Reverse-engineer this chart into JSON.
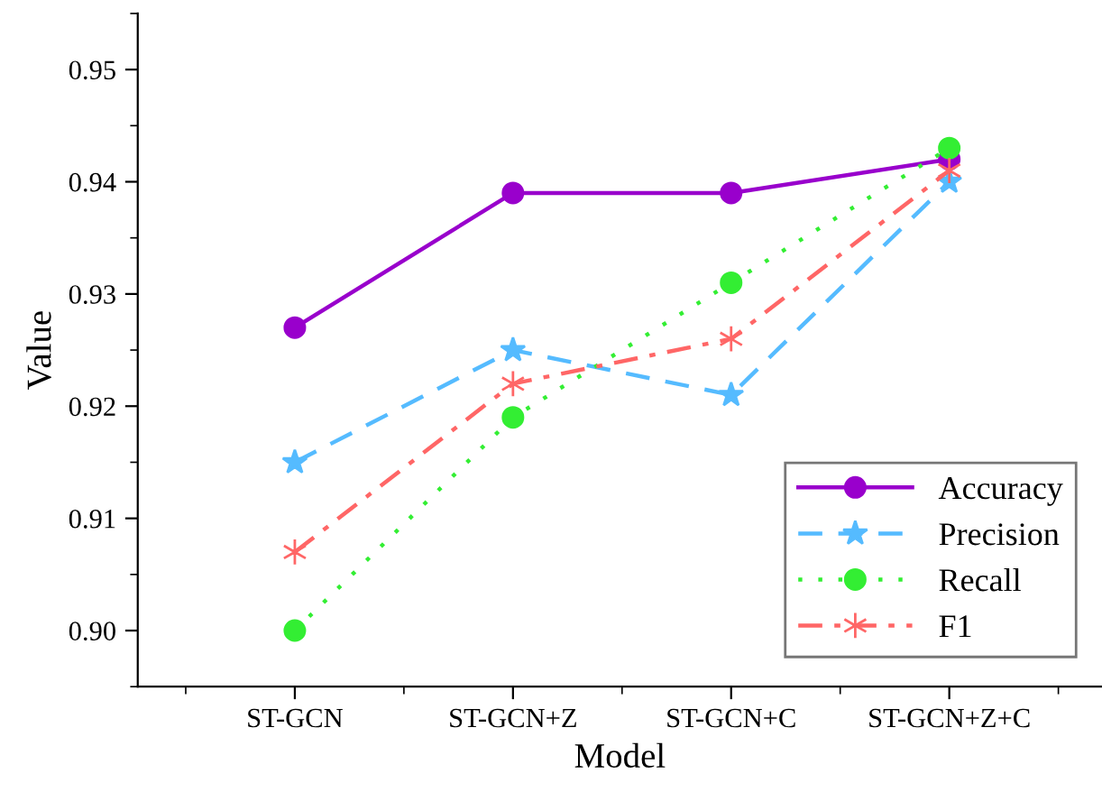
{
  "chart_data": {
    "type": "line",
    "xlabel": "Model",
    "ylabel": "Value",
    "categories": [
      "ST-GCN",
      "ST-GCN+Z",
      "ST-GCN+C",
      "ST-GCN+Z+C"
    ],
    "series": [
      {
        "name": "Accuracy",
        "color": "#9900cc",
        "values": [
          0.927,
          0.939,
          0.939,
          0.942
        ],
        "marker": "circle",
        "line_style": "solid"
      },
      {
        "name": "Precision",
        "color": "#55bbff",
        "values": [
          0.915,
          0.925,
          0.921,
          0.94
        ],
        "marker": "star",
        "line_style": "dashed"
      },
      {
        "name": "Recall",
        "color": "#33ee33",
        "values": [
          0.9,
          0.919,
          0.931,
          0.943
        ],
        "marker": "circle",
        "line_style": "dotted"
      },
      {
        "name": "F1",
        "color": "#ff6666",
        "values": [
          0.907,
          0.922,
          0.926,
          0.941
        ],
        "marker": "cross",
        "line_style": "dashdot"
      }
    ],
    "ylim": [
      0.895,
      0.955
    ],
    "yticks": [
      {
        "value": 0.9,
        "label": "0.90"
      },
      0.91,
      0.92,
      0.93,
      0.94,
      0.95
    ],
    "grid": false,
    "legend": "bottom right"
  }
}
